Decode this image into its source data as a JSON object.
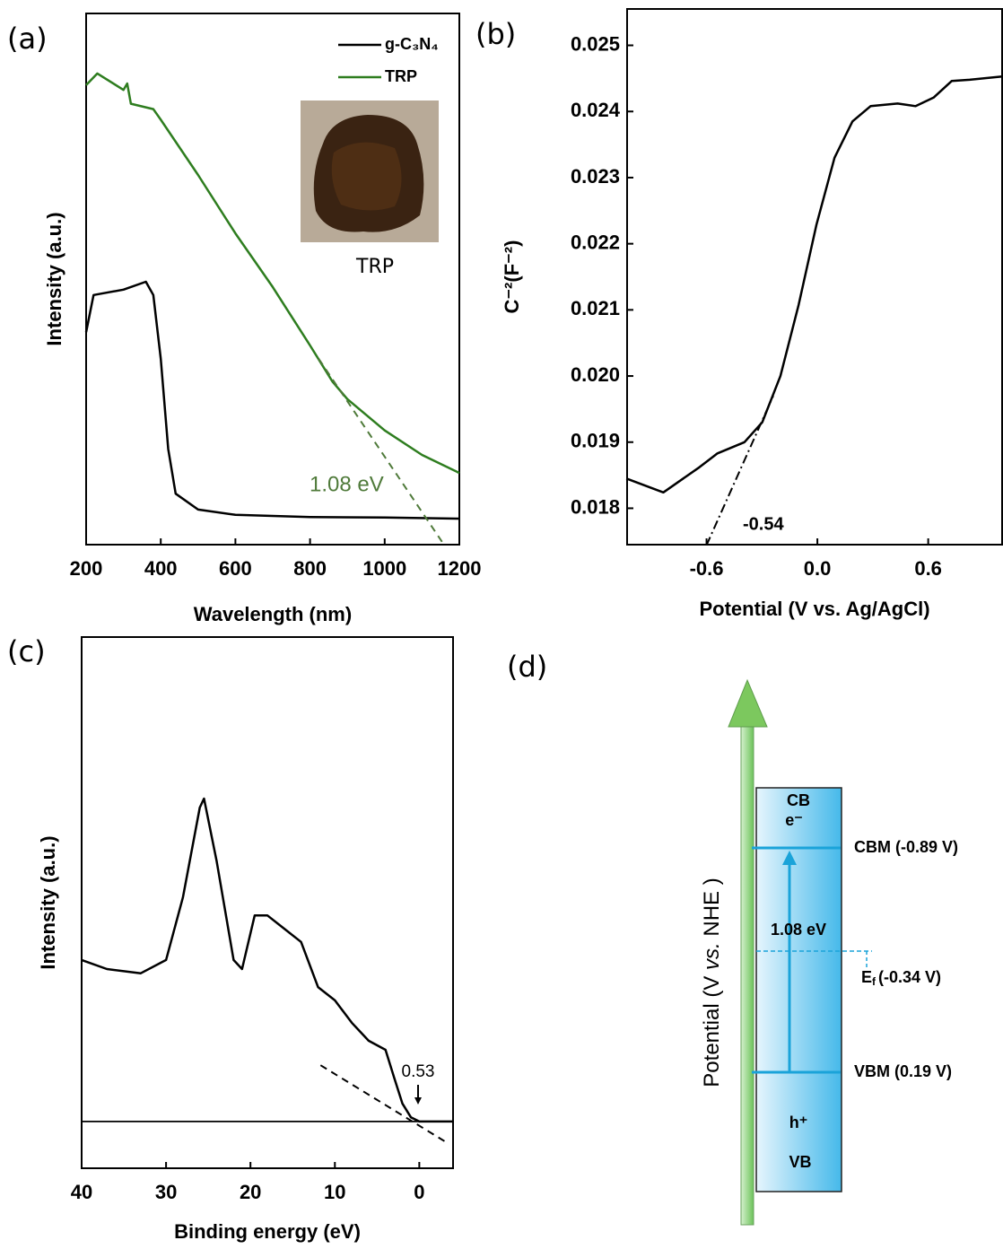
{
  "chart_data": [
    {
      "type": "line",
      "panel_label": "(a)",
      "xlabel": "Wavelength (nm)",
      "ylabel": "Intensity (a.u.)",
      "xlim": [
        200,
        1200
      ],
      "xticks": [
        200,
        400,
        600,
        800,
        1000,
        1200
      ],
      "ylim": [
        0,
        100
      ],
      "legend": "upper right",
      "series": [
        {
          "name": "g-C₃N₄",
          "color": "#000000",
          "style": "solid",
          "x": [
            200,
            220,
            300,
            360,
            380,
            400,
            420,
            440,
            500,
            600,
            800,
            1000,
            1200
          ],
          "values": [
            40,
            47,
            48,
            49.5,
            47,
            35,
            18,
            9.6,
            6.6,
            5.6,
            5.2,
            5.1,
            4.9
          ]
        },
        {
          "name": "TRP",
          "color": "#2e7d1f",
          "style": "solid",
          "x": [
            200,
            230,
            300,
            310,
            320,
            380,
            400,
            500,
            600,
            700,
            800,
            860,
            900,
            1000,
            1100,
            1200
          ],
          "values": [
            86.5,
            88.7,
            85.6,
            86.8,
            83,
            82,
            80,
            69.6,
            58.6,
            48.5,
            37.5,
            30.7,
            27.4,
            21.5,
            16.9,
            13.5
          ]
        }
      ],
      "tangent": {
        "color": "#4f7a3a",
        "style": "dashed",
        "x": [
          823,
          1159
        ],
        "values": [
          35,
          0
        ]
      },
      "annotation": "1.08 eV",
      "inset_label": "TRP"
    },
    {
      "type": "line",
      "panel_label": "(b)",
      "xlabel": "Potential (V vs. Ag/AgCl)",
      "ylabel": "C⁻²(F⁻²)",
      "xlim": [
        -1.03,
        1.0
      ],
      "xticks": [
        -0.6,
        {
          "value": 0,
          "label": "0.0"
        },
        0.6
      ],
      "ylim": [
        0.01745,
        0.02555
      ],
      "yticks": [
        0.018,
        0.019,
        {
          "value": 0.02,
          "label": "0.020"
        },
        0.021,
        0.022,
        0.023,
        0.024,
        0.025
      ],
      "series": [
        {
          "color": "#000000",
          "style": "solid",
          "x": [
            -1.034,
            -0.834,
            -0.639,
            -0.541,
            -0.395,
            -0.298,
            -0.2,
            -0.102,
            -0.005,
            0.093,
            0.19,
            0.288,
            0.434,
            0.532,
            0.629,
            0.727,
            0.824,
            1.0
          ],
          "values": [
            0.01845,
            0.01824,
            0.01862,
            0.01883,
            0.019,
            0.0193,
            0.02,
            0.02107,
            0.02229,
            0.0233,
            0.02385,
            0.02408,
            0.02412,
            0.02408,
            0.02421,
            0.02446,
            0.02448,
            0.02453
          ]
        }
      ],
      "tangent": {
        "color": "#000000",
        "style": "dashdot",
        "x": [
          -0.6,
          -0.239
        ],
        "values": [
          0.01744,
          0.0197
        ]
      },
      "annotation": "-0.54"
    },
    {
      "type": "line",
      "panel_label": "(c)",
      "xlabel": "Binding energy (eV)",
      "ylabel": "Intensity (a.u.)",
      "xlim": [
        40,
        -4
      ],
      "xticks": [
        40,
        30,
        20,
        10,
        0
      ],
      "ylim": [
        0,
        100
      ],
      "series": [
        {
          "color": "#000000",
          "style": "solid",
          "x": [
            40,
            37,
            33,
            30,
            28,
            26,
            25.5,
            24,
            22,
            21,
            19.5,
            18,
            16,
            14,
            12,
            10,
            8,
            6,
            4,
            3,
            2,
            1,
            0,
            -1,
            -4
          ],
          "values": [
            39.2,
            37.5,
            36.7,
            39.2,
            51,
            67.9,
            69.6,
            57.8,
            39.2,
            37.5,
            47.6,
            47.6,
            45.1,
            42.6,
            34.1,
            31.6,
            27.4,
            24,
            22.3,
            17.2,
            12.2,
            9.6,
            8.8,
            8.8,
            8.8
          ]
        }
      ],
      "baseline": {
        "color": "#000000",
        "style": "solid",
        "x": [
          40,
          -4
        ],
        "values": [
          8.8,
          8.8
        ]
      },
      "tangent": {
        "color": "#000000",
        "style": "dashed",
        "x": [
          11.7,
          -3.5
        ],
        "values": [
          19.4,
          4.6
        ]
      },
      "annotation": "0.53"
    }
  ],
  "diagram": {
    "panel_label": "(d)",
    "cb": "CB",
    "electron": "e⁻",
    "cbm": "CBM (-0.89 V)",
    "gap": "1.08 eV",
    "ef_symbol": "E",
    "ef_sub": "f",
    "ef_value": "(-0.34 V)",
    "vbm": "VBM (0.19 V)",
    "hole": "h⁺",
    "vb": "VB",
    "ylabel_start": "Potential (V ",
    "ylabel_vs": "vs.",
    "ylabel_end": " NHE )"
  }
}
